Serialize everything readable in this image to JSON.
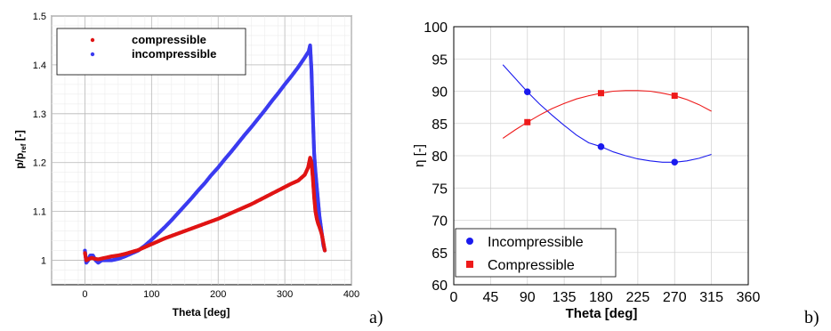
{
  "chart_data": [
    {
      "type": "scatter",
      "panel_label": "a)",
      "xlabel": "Theta [deg]",
      "ylabel_main": "p/p",
      "ylabel_sub": "ref",
      "ylabel_tail": " [-]",
      "xlim": [
        -50,
        400
      ],
      "ylim": [
        0.95,
        1.5
      ],
      "xticks": [
        0,
        100,
        200,
        300,
        400
      ],
      "yticks": [
        1,
        1.1,
        1.2,
        1.3,
        1.4,
        1.5
      ],
      "grid": true,
      "legend_position": "top-left",
      "series": [
        {
          "name": "incompressible",
          "color": "#3b3bf0",
          "points": [
            [
              0,
              1.02
            ],
            [
              2,
              0.995
            ],
            [
              5,
              1.0
            ],
            [
              8,
              1.01
            ],
            [
              12,
              1.01
            ],
            [
              16,
              1.0
            ],
            [
              20,
              0.995
            ],
            [
              25,
              1.0
            ],
            [
              30,
              1.0
            ],
            [
              40,
              1.0
            ],
            [
              50,
              1.003
            ],
            [
              60,
              1.008
            ],
            [
              70,
              1.014
            ],
            [
              80,
              1.02
            ],
            [
              90,
              1.03
            ],
            [
              100,
              1.042
            ],
            [
              110,
              1.055
            ],
            [
              120,
              1.068
            ],
            [
              130,
              1.082
            ],
            [
              140,
              1.097
            ],
            [
              150,
              1.112
            ],
            [
              160,
              1.127
            ],
            [
              170,
              1.143
            ],
            [
              180,
              1.158
            ],
            [
              190,
              1.175
            ],
            [
              200,
              1.19
            ],
            [
              210,
              1.207
            ],
            [
              220,
              1.223
            ],
            [
              230,
              1.24
            ],
            [
              240,
              1.257
            ],
            [
              250,
              1.273
            ],
            [
              260,
              1.29
            ],
            [
              270,
              1.307
            ],
            [
              280,
              1.325
            ],
            [
              290,
              1.342
            ],
            [
              300,
              1.36
            ],
            [
              310,
              1.377
            ],
            [
              320,
              1.395
            ],
            [
              330,
              1.415
            ],
            [
              336,
              1.428
            ],
            [
              338,
              1.44
            ],
            [
              340,
              1.39
            ],
            [
              342,
              1.3
            ],
            [
              344,
              1.22
            ],
            [
              346,
              1.18
            ],
            [
              348,
              1.15
            ],
            [
              350,
              1.12
            ],
            [
              352,
              1.09
            ],
            [
              354,
              1.07
            ],
            [
              356,
              1.05
            ],
            [
              358,
              1.03
            ],
            [
              360,
              1.02
            ]
          ]
        },
        {
          "name": "compressible",
          "color": "#e01414",
          "points": [
            [
              0,
              1.015
            ],
            [
              2,
              1.0
            ],
            [
              5,
              1.002
            ],
            [
              10,
              1.005
            ],
            [
              15,
              1.003
            ],
            [
              20,
              1.002
            ],
            [
              30,
              1.005
            ],
            [
              40,
              1.008
            ],
            [
              50,
              1.01
            ],
            [
              60,
              1.013
            ],
            [
              70,
              1.017
            ],
            [
              80,
              1.021
            ],
            [
              90,
              1.027
            ],
            [
              100,
              1.033
            ],
            [
              110,
              1.039
            ],
            [
              120,
              1.045
            ],
            [
              130,
              1.05
            ],
            [
              140,
              1.055
            ],
            [
              150,
              1.06
            ],
            [
              160,
              1.065
            ],
            [
              170,
              1.07
            ],
            [
              180,
              1.075
            ],
            [
              190,
              1.08
            ],
            [
              200,
              1.085
            ],
            [
              210,
              1.091
            ],
            [
              220,
              1.097
            ],
            [
              230,
              1.103
            ],
            [
              240,
              1.109
            ],
            [
              250,
              1.115
            ],
            [
              260,
              1.122
            ],
            [
              270,
              1.129
            ],
            [
              280,
              1.136
            ],
            [
              290,
              1.143
            ],
            [
              300,
              1.15
            ],
            [
              310,
              1.157
            ],
            [
              320,
              1.163
            ],
            [
              330,
              1.175
            ],
            [
              335,
              1.19
            ],
            [
              338,
              1.21
            ],
            [
              340,
              1.2
            ],
            [
              342,
              1.17
            ],
            [
              344,
              1.13
            ],
            [
              346,
              1.1
            ],
            [
              348,
              1.085
            ],
            [
              350,
              1.075
            ],
            [
              352,
              1.068
            ],
            [
              354,
              1.06
            ],
            [
              356,
              1.05
            ],
            [
              358,
              1.035
            ],
            [
              360,
              1.02
            ]
          ]
        }
      ]
    },
    {
      "type": "line",
      "panel_label": "b)",
      "xlabel": "Theta [deg]",
      "ylabel": "η [-]",
      "xlim": [
        0,
        360
      ],
      "ylim": [
        60,
        100
      ],
      "xticks": [
        0,
        45,
        90,
        135,
        180,
        225,
        270,
        315,
        360
      ],
      "yticks": [
        60,
        65,
        70,
        75,
        80,
        85,
        90,
        95,
        100
      ],
      "grid": true,
      "legend_position": "bottom-left",
      "series": [
        {
          "name": "Incompressible",
          "color": "#1a1aee",
          "marker": "circle",
          "markers_x": [
            90,
            180,
            270
          ],
          "markers_y": [
            89.9,
            81.4,
            79.0
          ],
          "fit_x": [
            60,
            75,
            90,
            105,
            120,
            135,
            150,
            165,
            180,
            195,
            210,
            225,
            240,
            255,
            270,
            285,
            300,
            315
          ],
          "fit_y": [
            94.1,
            92.0,
            89.9,
            88.0,
            86.3,
            84.7,
            83.2,
            82.0,
            81.4,
            80.6,
            80.0,
            79.5,
            79.2,
            79.0,
            79.0,
            79.2,
            79.6,
            80.2
          ]
        },
        {
          "name": "Compressible",
          "color": "#ee1a1a",
          "marker": "square",
          "markers_x": [
            90,
            180,
            270
          ],
          "markers_y": [
            85.2,
            89.7,
            89.3
          ],
          "fit_x": [
            60,
            75,
            90,
            105,
            120,
            135,
            150,
            165,
            180,
            195,
            210,
            225,
            240,
            255,
            270,
            285,
            300,
            315
          ],
          "fit_y": [
            82.7,
            84.0,
            85.2,
            86.3,
            87.3,
            88.1,
            88.8,
            89.3,
            89.7,
            90.0,
            90.1,
            90.1,
            90.0,
            89.7,
            89.3,
            88.7,
            87.9,
            86.9
          ]
        }
      ]
    }
  ]
}
